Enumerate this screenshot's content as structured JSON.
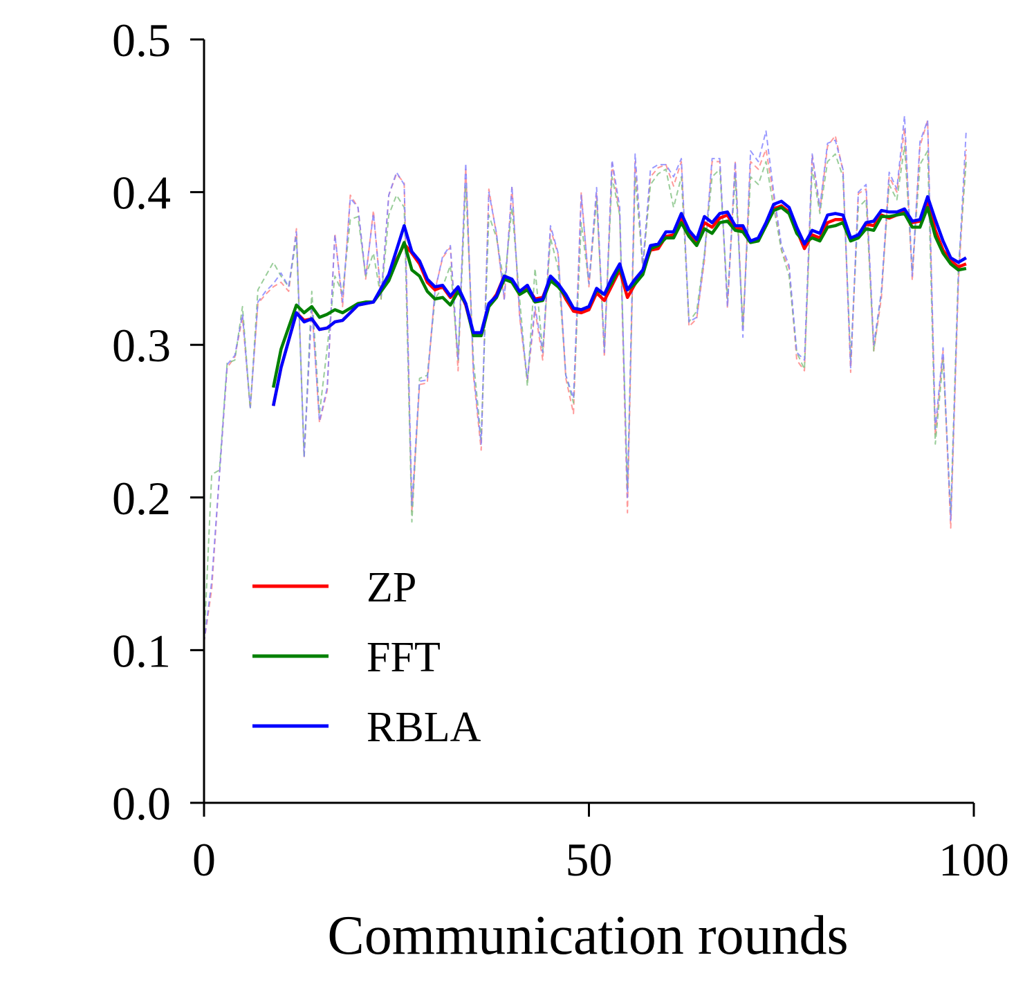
{
  "chart_data": {
    "type": "line",
    "title": "",
    "xlabel": "Communication rounds",
    "ylabel": "",
    "xlim": [
      0,
      100
    ],
    "ylim": [
      0.0,
      0.5
    ],
    "x_ticks": [
      0,
      50,
      100
    ],
    "x_tick_labels": [
      "0",
      "50",
      "100"
    ],
    "y_ticks": [
      0.0,
      0.1,
      0.2,
      0.3,
      0.4,
      0.5
    ],
    "y_tick_labels": [
      "0.0",
      "0.1",
      "0.2",
      "0.3",
      "0.4",
      "0.5"
    ],
    "grid": false,
    "legend_position": "lower-left",
    "series": [
      {
        "name": "ZP",
        "color": "#ff0000",
        "x": [
          9,
          10,
          12,
          13,
          14,
          15,
          16,
          17,
          18,
          20,
          21,
          22,
          24,
          26,
          27,
          28,
          29,
          30,
          31,
          32,
          33,
          34,
          35,
          36,
          37,
          38,
          39,
          40,
          41,
          42,
          43,
          44,
          45,
          46,
          47,
          48,
          49,
          50,
          51,
          52,
          53,
          54,
          55,
          56,
          57,
          58,
          59,
          60,
          61,
          62,
          63,
          64,
          65,
          66,
          67,
          68,
          69,
          70,
          71,
          72,
          73,
          74,
          75,
          76,
          77,
          78,
          79,
          80,
          81,
          82,
          83,
          84,
          85,
          86,
          87,
          88,
          89,
          90,
          91,
          92,
          93,
          94,
          95,
          96,
          97,
          98,
          99
        ],
        "values": [
          0.26,
          0.285,
          0.321,
          0.316,
          0.317,
          0.31,
          0.311,
          0.315,
          0.316,
          0.326,
          0.327,
          0.328,
          0.345,
          0.366,
          0.36,
          0.353,
          0.341,
          0.336,
          0.338,
          0.331,
          0.337,
          0.326,
          0.307,
          0.307,
          0.326,
          0.333,
          0.345,
          0.342,
          0.334,
          0.338,
          0.33,
          0.331,
          0.344,
          0.34,
          0.33,
          0.322,
          0.321,
          0.323,
          0.334,
          0.329,
          0.339,
          0.349,
          0.331,
          0.34,
          0.348,
          0.362,
          0.363,
          0.371,
          0.372,
          0.383,
          0.372,
          0.367,
          0.38,
          0.377,
          0.383,
          0.385,
          0.376,
          0.376,
          0.368,
          0.369,
          0.378,
          0.389,
          0.391,
          0.387,
          0.375,
          0.363,
          0.372,
          0.37,
          0.38,
          0.382,
          0.382,
          0.369,
          0.371,
          0.379,
          0.378,
          0.385,
          0.383,
          0.385,
          0.387,
          0.38,
          0.381,
          0.394,
          0.375,
          0.362,
          0.355,
          0.351,
          0.353
        ]
      },
      {
        "name": "FFT",
        "color": "#008000",
        "x": [
          9,
          10,
          12,
          13,
          14,
          15,
          16,
          17,
          18,
          20,
          21,
          22,
          24,
          26,
          27,
          28,
          29,
          30,
          31,
          32,
          33,
          34,
          35,
          36,
          37,
          38,
          39,
          40,
          41,
          42,
          43,
          44,
          45,
          46,
          47,
          48,
          49,
          50,
          51,
          52,
          53,
          54,
          55,
          56,
          57,
          58,
          59,
          60,
          61,
          62,
          63,
          64,
          65,
          66,
          67,
          68,
          69,
          70,
          71,
          72,
          73,
          74,
          75,
          76,
          77,
          78,
          79,
          80,
          81,
          82,
          83,
          84,
          85,
          86,
          87,
          88,
          89,
          90,
          91,
          92,
          93,
          94,
          95,
          96,
          97,
          98,
          99
        ],
        "values": [
          0.272,
          0.297,
          0.326,
          0.321,
          0.325,
          0.318,
          0.32,
          0.323,
          0.321,
          0.327,
          0.328,
          0.328,
          0.342,
          0.367,
          0.349,
          0.345,
          0.335,
          0.33,
          0.331,
          0.326,
          0.335,
          0.327,
          0.306,
          0.306,
          0.325,
          0.331,
          0.343,
          0.341,
          0.333,
          0.336,
          0.328,
          0.329,
          0.342,
          0.338,
          0.332,
          0.324,
          0.323,
          0.325,
          0.336,
          0.333,
          0.341,
          0.351,
          0.336,
          0.34,
          0.346,
          0.363,
          0.365,
          0.37,
          0.37,
          0.38,
          0.371,
          0.365,
          0.376,
          0.373,
          0.38,
          0.381,
          0.375,
          0.374,
          0.367,
          0.368,
          0.378,
          0.388,
          0.39,
          0.386,
          0.373,
          0.367,
          0.37,
          0.368,
          0.377,
          0.378,
          0.38,
          0.368,
          0.37,
          0.376,
          0.375,
          0.384,
          0.384,
          0.385,
          0.386,
          0.377,
          0.377,
          0.39,
          0.371,
          0.36,
          0.353,
          0.349,
          0.35
        ]
      },
      {
        "name": "RBLA",
        "color": "#0000ff",
        "x": [
          9,
          10,
          12,
          13,
          14,
          15,
          16,
          17,
          18,
          20,
          21,
          22,
          24,
          26,
          27,
          28,
          29,
          30,
          31,
          32,
          33,
          34,
          35,
          36,
          37,
          38,
          39,
          40,
          41,
          42,
          43,
          44,
          45,
          46,
          47,
          48,
          49,
          50,
          51,
          52,
          53,
          54,
          55,
          56,
          57,
          58,
          59,
          60,
          61,
          62,
          63,
          64,
          65,
          66,
          67,
          68,
          69,
          70,
          71,
          72,
          73,
          74,
          75,
          76,
          77,
          78,
          79,
          80,
          81,
          82,
          83,
          84,
          85,
          86,
          87,
          88,
          89,
          90,
          91,
          92,
          93,
          94,
          95,
          96,
          97,
          98,
          99
        ],
        "values": [
          0.26,
          0.285,
          0.321,
          0.315,
          0.317,
          0.31,
          0.311,
          0.315,
          0.316,
          0.326,
          0.327,
          0.328,
          0.346,
          0.378,
          0.361,
          0.355,
          0.343,
          0.338,
          0.339,
          0.332,
          0.338,
          0.327,
          0.308,
          0.308,
          0.327,
          0.332,
          0.345,
          0.343,
          0.335,
          0.339,
          0.329,
          0.33,
          0.345,
          0.34,
          0.333,
          0.324,
          0.323,
          0.325,
          0.337,
          0.333,
          0.344,
          0.353,
          0.336,
          0.343,
          0.349,
          0.365,
          0.366,
          0.374,
          0.374,
          0.386,
          0.375,
          0.369,
          0.384,
          0.38,
          0.386,
          0.387,
          0.378,
          0.378,
          0.368,
          0.37,
          0.38,
          0.392,
          0.394,
          0.39,
          0.377,
          0.366,
          0.375,
          0.373,
          0.385,
          0.386,
          0.385,
          0.37,
          0.372,
          0.38,
          0.381,
          0.388,
          0.387,
          0.387,
          0.389,
          0.381,
          0.382,
          0.397,
          0.382,
          0.368,
          0.357,
          0.354,
          0.357
        ]
      },
      {
        "name": "",
        "color": "#ff8080",
        "style": "dashed",
        "x": [
          0,
          1,
          2,
          3,
          4,
          5,
          6,
          7,
          8,
          9,
          10,
          11,
          12,
          13,
          14,
          15,
          16,
          17,
          18,
          19,
          20,
          21,
          22,
          23,
          24,
          25,
          26,
          27,
          28,
          29,
          30,
          31,
          32,
          33,
          34,
          35,
          36,
          37,
          38,
          39,
          40,
          41,
          42,
          43,
          44,
          45,
          46,
          47,
          48,
          49,
          50,
          51,
          52,
          53,
          54,
          55,
          56,
          57,
          58,
          59,
          60,
          61,
          62,
          63,
          64,
          65,
          66,
          67,
          68,
          69,
          70,
          71,
          72,
          73,
          74,
          75,
          76,
          77,
          78,
          79,
          80,
          81,
          82,
          83,
          84,
          85,
          86,
          87,
          88,
          89,
          90,
          91,
          92,
          93,
          94,
          95,
          96,
          97,
          98,
          99
        ],
        "values": [
          0.105,
          0.14,
          0.215,
          0.285,
          0.292,
          0.318,
          0.258,
          0.327,
          0.333,
          0.338,
          0.341,
          0.335,
          0.376,
          0.226,
          0.325,
          0.249,
          0.27,
          0.373,
          0.325,
          0.398,
          0.39,
          0.343,
          0.388,
          0.33,
          0.398,
          0.412,
          0.406,
          0.19,
          0.274,
          0.275,
          0.336,
          0.357,
          0.364,
          0.283,
          0.416,
          0.28,
          0.231,
          0.402,
          0.372,
          0.329,
          0.403,
          0.318,
          0.276,
          0.323,
          0.29,
          0.376,
          0.359,
          0.278,
          0.255,
          0.4,
          0.338,
          0.399,
          0.292,
          0.419,
          0.385,
          0.19,
          0.42,
          0.349,
          0.41,
          0.416,
          0.418,
          0.404,
          0.42,
          0.312,
          0.317,
          0.355,
          0.42,
          0.42,
          0.324,
          0.42,
          0.31,
          0.42,
          0.415,
          0.428,
          0.397,
          0.362,
          0.35,
          0.29,
          0.283,
          0.424,
          0.388,
          0.43,
          0.437,
          0.414,
          0.282,
          0.399,
          0.402,
          0.296,
          0.331,
          0.41,
          0.4,
          0.442,
          0.342,
          0.43,
          0.447,
          0.24,
          0.296,
          0.18,
          0.341,
          0.428
        ]
      },
      {
        "name": "",
        "color": "#80c080",
        "style": "dashed",
        "x": [
          0,
          1,
          2,
          3,
          4,
          5,
          6,
          7,
          8,
          9,
          10,
          11,
          12,
          13,
          14,
          15,
          16,
          17,
          18,
          19,
          20,
          21,
          22,
          23,
          24,
          25,
          26,
          27,
          28,
          29,
          30,
          31,
          32,
          33,
          34,
          35,
          36,
          37,
          38,
          39,
          40,
          41,
          42,
          43,
          44,
          45,
          46,
          47,
          48,
          49,
          50,
          51,
          52,
          53,
          54,
          55,
          56,
          57,
          58,
          59,
          60,
          61,
          62,
          63,
          64,
          65,
          66,
          67,
          68,
          69,
          70,
          71,
          72,
          73,
          74,
          75,
          76,
          77,
          78,
          79,
          80,
          81,
          82,
          83,
          84,
          85,
          86,
          87,
          88,
          89,
          90,
          91,
          92,
          93,
          94,
          95,
          96,
          97,
          98,
          99
        ],
        "values": [
          0.105,
          0.215,
          0.218,
          0.288,
          0.29,
          0.325,
          0.258,
          0.336,
          0.345,
          0.354,
          0.345,
          0.338,
          0.37,
          0.226,
          0.335,
          0.255,
          0.298,
          0.345,
          0.334,
          0.382,
          0.384,
          0.345,
          0.36,
          0.33,
          0.385,
          0.398,
          0.39,
          0.184,
          0.278,
          0.28,
          0.33,
          0.338,
          0.352,
          0.29,
          0.405,
          0.29,
          0.238,
          0.385,
          0.37,
          0.34,
          0.39,
          0.33,
          0.273,
          0.35,
          0.295,
          0.37,
          0.35,
          0.28,
          0.262,
          0.38,
          0.34,
          0.395,
          0.298,
          0.41,
          0.385,
          0.205,
          0.41,
          0.352,
          0.405,
          0.412,
          0.415,
          0.39,
          0.41,
          0.315,
          0.322,
          0.36,
          0.41,
          0.415,
          0.33,
          0.41,
          0.312,
          0.41,
          0.405,
          0.42,
          0.39,
          0.362,
          0.345,
          0.295,
          0.284,
          0.416,
          0.386,
          0.42,
          0.425,
          0.41,
          0.29,
          0.39,
          0.395,
          0.296,
          0.335,
          0.405,
          0.395,
          0.43,
          0.348,
          0.418,
          0.427,
          0.235,
          0.29,
          0.19,
          0.35,
          0.42
        ]
      },
      {
        "name": "",
        "color": "#8080ff",
        "style": "dashed",
        "x": [
          0,
          1,
          2,
          3,
          4,
          5,
          6,
          7,
          8,
          9,
          10,
          11,
          12,
          13,
          14,
          15,
          16,
          17,
          18,
          19,
          20,
          21,
          22,
          23,
          24,
          25,
          26,
          27,
          28,
          29,
          30,
          31,
          32,
          33,
          34,
          35,
          36,
          37,
          38,
          39,
          40,
          41,
          42,
          43,
          44,
          45,
          46,
          47,
          48,
          49,
          50,
          51,
          52,
          53,
          54,
          55,
          56,
          57,
          58,
          59,
          60,
          61,
          62,
          63,
          64,
          65,
          66,
          67,
          68,
          69,
          70,
          71,
          72,
          73,
          74,
          75,
          76,
          77,
          78,
          79,
          80,
          81,
          82,
          83,
          84,
          85,
          86,
          87,
          88,
          89,
          90,
          91,
          92,
          93,
          94,
          95,
          96,
          97,
          98,
          99
        ],
        "values": [
          0.105,
          0.145,
          0.215,
          0.287,
          0.293,
          0.32,
          0.259,
          0.328,
          0.335,
          0.34,
          0.347,
          0.338,
          0.374,
          0.227,
          0.326,
          0.25,
          0.272,
          0.372,
          0.328,
          0.396,
          0.39,
          0.345,
          0.386,
          0.332,
          0.398,
          0.413,
          0.405,
          0.195,
          0.276,
          0.277,
          0.335,
          0.358,
          0.365,
          0.29,
          0.419,
          0.282,
          0.235,
          0.4,
          0.373,
          0.33,
          0.404,
          0.32,
          0.278,
          0.325,
          0.295,
          0.378,
          0.36,
          0.28,
          0.265,
          0.398,
          0.34,
          0.403,
          0.295,
          0.421,
          0.39,
          0.2,
          0.425,
          0.352,
          0.415,
          0.418,
          0.418,
          0.41,
          0.422,
          0.315,
          0.318,
          0.358,
          0.422,
          0.422,
          0.325,
          0.42,
          0.305,
          0.427,
          0.42,
          0.44,
          0.4,
          0.365,
          0.352,
          0.295,
          0.29,
          0.425,
          0.39,
          0.432,
          0.434,
          0.415,
          0.285,
          0.4,
          0.405,
          0.3,
          0.335,
          0.413,
          0.402,
          0.45,
          0.345,
          0.433,
          0.447,
          0.245,
          0.298,
          0.185,
          0.345,
          0.44
        ]
      }
    ]
  }
}
